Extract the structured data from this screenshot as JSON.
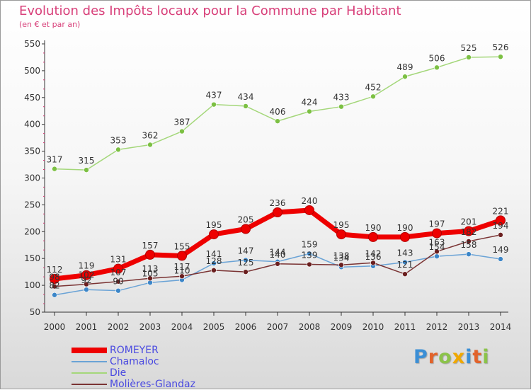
{
  "title": "Evolution des Impôts locaux pour la Commune par Habitant",
  "subtitle": "(en € et par an)",
  "logo": {
    "text": "Proxiti",
    "colors": [
      "#3b8fd6",
      "#e2632b",
      "#8bc34a",
      "#f0a800",
      "#3b8fd6",
      "#e2632b",
      "#8bc34a"
    ]
  },
  "chart_data": {
    "type": "line",
    "x": [
      2000,
      2001,
      2002,
      2003,
      2004,
      2005,
      2006,
      2007,
      2008,
      2009,
      2010,
      2011,
      2012,
      2013,
      2014
    ],
    "x_tick_labels": [
      "2000",
      "2001",
      "2002",
      "2003",
      "2004",
      "2005",
      "2006",
      "2007",
      "2008",
      "2009",
      "2010",
      "2011",
      "2012",
      "2013",
      "2014"
    ],
    "ylim": [
      50,
      550
    ],
    "y_ticks": [
      50,
      100,
      150,
      200,
      250,
      300,
      350,
      400,
      450,
      500,
      550
    ],
    "xlabel": "",
    "ylabel": "",
    "grid": false,
    "legend_position": "bottom-left",
    "series": [
      {
        "name": "ROMEYER",
        "color": "#ee0000",
        "marker": "#ee0000",
        "bold": true,
        "values": [
          112,
          119,
          131,
          157,
          155,
          195,
          205,
          236,
          240,
          195,
          190,
          190,
          197,
          201,
          221
        ]
      },
      {
        "name": "Chamaloc",
        "color": "#6aa3d6",
        "marker": "#3c86c8",
        "values": [
          82,
          92,
          90,
          105,
          110,
          141,
          147,
          144,
          159,
          134,
          136,
          143,
          154,
          158,
          149
        ]
      },
      {
        "name": "Die",
        "color": "#a4d77a",
        "marker": "#7cc043",
        "values": [
          317,
          315,
          353,
          362,
          387,
          437,
          434,
          406,
          424,
          433,
          452,
          489,
          506,
          525,
          526
        ]
      },
      {
        "name": "Molières-Glandaz",
        "color": "#7a3333",
        "marker": "#6a1f1f",
        "values": [
          98,
          102,
          107,
          113,
          117,
          128,
          125,
          140,
          139,
          138,
          142,
          121,
          163,
          182,
          194
        ]
      }
    ]
  }
}
